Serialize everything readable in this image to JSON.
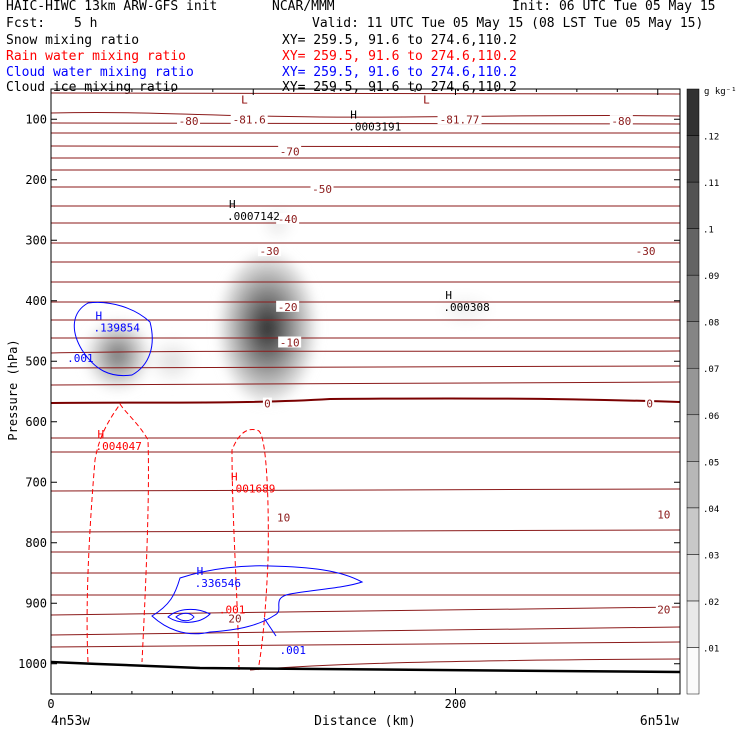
{
  "header": {
    "title": "HAIC-HIWC 13km ARW-GFS init",
    "center": "NCAR/MMM",
    "init": "Init: 06 UTC Tue 05 May 15",
    "fcst_label": "Fcst:",
    "fcst_value": "5 h",
    "valid": "Valid: 11 UTC Tue 05 May 15 (08 LST Tue 05 May 15)"
  },
  "fields": [
    {
      "name": "Snow mixing ratio",
      "xy": "XY= 259.5, 91.6 to 274.6,110.2",
      "color": "#000000"
    },
    {
      "name": "Rain water mixing ratio",
      "xy": "XY= 259.5, 91.6 to 274.6,110.2",
      "color": "#ff0000"
    },
    {
      "name": "Cloud water mixing ratio",
      "xy": "XY= 259.5, 91.6 to 274.6,110.2",
      "color": "#0000ff"
    },
    {
      "name": "Cloud ice mixing ratio",
      "xy": "XY= 259.5, 91.6 to 274.6,110.2",
      "color": "#000000"
    }
  ],
  "chart_data": {
    "type": "heatmap",
    "xlabel": "Distance (km)",
    "ylabel": "Pressure (hPa)",
    "xlim": [
      0,
      311
    ],
    "ylim": [
      1050,
      50
    ],
    "x_ticks": [
      0,
      200
    ],
    "y_ticks": [
      100,
      200,
      300,
      400,
      500,
      600,
      700,
      800,
      900,
      1000
    ],
    "x_endpoints": {
      "left": "4n53w",
      "right": "6n51w"
    },
    "colorbar": {
      "unit": "g kg⁻¹",
      "ticks": [
        ".01",
        ".02",
        ".03",
        ".04",
        ".05",
        ".06",
        ".07",
        ".08",
        ".09",
        ".1",
        ".11",
        ".12"
      ]
    },
    "temperature_labels": [
      {
        "text": "-80",
        "x": 68,
        "p": 103
      },
      {
        "text": "-81.6",
        "x": 98,
        "p": 100
      },
      {
        "text": "-81.77",
        "x": 202,
        "p": 100
      },
      {
        "text": "-80",
        "x": 282,
        "p": 103
      },
      {
        "text": "-70",
        "x": 118,
        "p": 153
      },
      {
        "text": "-50",
        "x": 134,
        "p": 215
      },
      {
        "text": "-40",
        "x": 117,
        "p": 265
      },
      {
        "text": "-30",
        "x": 108,
        "p": 318
      },
      {
        "text": "-30",
        "x": 294,
        "p": 318
      },
      {
        "text": "-20",
        "x": 117,
        "p": 410
      },
      {
        "text": "-10",
        "x": 118,
        "p": 469
      },
      {
        "text": "0",
        "x": 107,
        "p": 570
      },
      {
        "text": "0",
        "x": 296,
        "p": 570
      },
      {
        "text": "10",
        "x": 115,
        "p": 758
      },
      {
        "text": "10",
        "x": 303,
        "p": 753
      },
      {
        "text": "20",
        "x": 91,
        "p": 925
      },
      {
        "text": "20",
        "x": 303,
        "p": 910
      }
    ],
    "extrema": [
      {
        "type": "L",
        "x": 93,
        "p": 77,
        "color": "#8b0000"
      },
      {
        "type": "L",
        "x": 183,
        "p": 77,
        "color": "#8b0000"
      },
      {
        "type": "H",
        "value": ".0003191",
        "x": 147,
        "p": 102,
        "color": "#000000"
      },
      {
        "type": "H",
        "value": ".0007142",
        "x": 87,
        "p": 250,
        "color": "#000000"
      },
      {
        "type": "H",
        "value": ".000308",
        "x": 194,
        "p": 400,
        "color": "#000000"
      },
      {
        "type": "H",
        "value": ".139854",
        "x": 21,
        "p": 434,
        "color": "#0000ff"
      },
      {
        "type": "",
        "value": ".001",
        "x": 8,
        "p": 495,
        "color": "#0000ff"
      },
      {
        "type": "H",
        "value": ".004047",
        "x": 22,
        "p": 630,
        "color": "#ff0000"
      },
      {
        "type": "H",
        "value": ".001689",
        "x": 88,
        "p": 700,
        "color": "#ff0000"
      },
      {
        "type": "H",
        "value": ".336546",
        "x": 71,
        "p": 857,
        "color": "#0000ff"
      },
      {
        "type": "",
        "value": ".001",
        "x": 83,
        "p": 910,
        "color": "#ff0000"
      },
      {
        "type": "",
        "value": ".001",
        "x": 113,
        "p": 977,
        "color": "#0000ff"
      }
    ],
    "snow_blobs": [
      {
        "x": 33,
        "p": 490,
        "rx": 15,
        "rp": 55,
        "max": 0.08
      },
      {
        "x": 60,
        "p": 500,
        "rx": 11,
        "rp": 35,
        "max": 0.02
      },
      {
        "x": 107,
        "p": 445,
        "rx": 23,
        "rp": 120,
        "max": 0.12
      },
      {
        "x": 112,
        "p": 273,
        "rx": 7,
        "rp": 25,
        "max": 0.015
      },
      {
        "x": 205,
        "p": 415,
        "rx": 13,
        "rp": 25,
        "max": 0.01
      }
    ]
  }
}
